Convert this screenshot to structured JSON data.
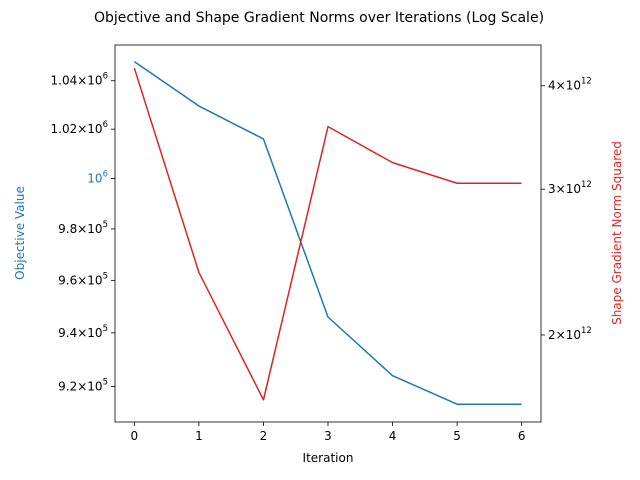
{
  "chart_data": {
    "type": "line",
    "title": "Objective and Shape Gradient Norms over Iterations (Log Scale)",
    "xlabel": "Iteration",
    "x": [
      0,
      1,
      2,
      3,
      4,
      5,
      6
    ],
    "xticks": [
      "0",
      "1",
      "2",
      "3",
      "4",
      "5",
      "6"
    ],
    "xlim": [
      -0.3,
      6.3
    ],
    "grid": false,
    "legend": "none",
    "series": [
      {
        "axis": "left",
        "color": "#1f77b4",
        "values": [
          1048000,
          1029500,
          1016000,
          946000,
          924000,
          913500,
          913500
        ]
      },
      {
        "axis": "right",
        "color": "#d62728",
        "values": [
          4200000000000.0,
          2380000000000.0,
          1670000000000.0,
          3570000000000.0,
          3230000000000.0,
          3050000000000.0,
          3050000000000.0
        ]
      }
    ],
    "y_left": {
      "label": "Objective Value",
      "label_color": "#1f77b4",
      "scale": "log",
      "lim": [
        907000,
        1055000
      ],
      "ticks": [
        {
          "value": 920000,
          "mant": "9.2",
          "exp": "5"
        },
        {
          "value": 940000,
          "mant": "9.4",
          "exp": "5"
        },
        {
          "value": 960000,
          "mant": "9.6",
          "exp": "5"
        },
        {
          "value": 980000,
          "mant": "9.8",
          "exp": "5"
        },
        {
          "value": 1000000,
          "mant": "",
          "exp": "6",
          "color": "#1f77b4"
        },
        {
          "value": 1020000,
          "mant": "1.02",
          "exp": "6"
        },
        {
          "value": 1040000,
          "mant": "1.04",
          "exp": "6"
        }
      ]
    },
    "y_right": {
      "label": "Shape Gradient Norm Squared",
      "label_color": "#d62728",
      "scale": "log",
      "lim": [
        1570000000000.0,
        4480000000000.0
      ],
      "ticks": [
        {
          "value": 2000000000000.0,
          "mant": "2",
          "exp": "12"
        },
        {
          "value": 3000000000000.0,
          "mant": "3",
          "exp": "12"
        },
        {
          "value": 4000000000000.0,
          "mant": "4",
          "exp": "12"
        }
      ]
    }
  }
}
